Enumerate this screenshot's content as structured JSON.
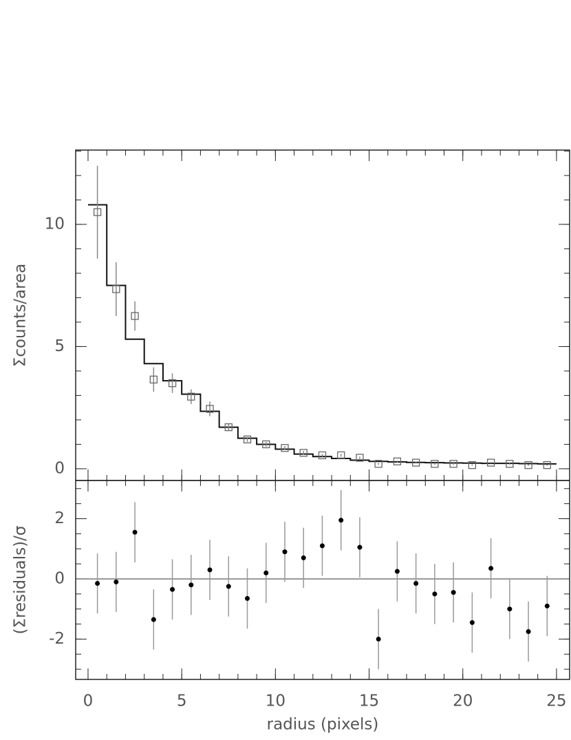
{
  "chart_data": [
    {
      "type": "scatter",
      "ylabel": "Σcounts/area",
      "marker": "square",
      "color": "#666666",
      "error_color": "#888888",
      "x": [
        0.5,
        1.5,
        2.5,
        3.5,
        4.5,
        5.5,
        6.5,
        7.5,
        8.5,
        9.5,
        10.5,
        11.5,
        12.5,
        13.5,
        14.5,
        15.5,
        16.5,
        17.5,
        18.5,
        19.5,
        20.5,
        21.5,
        22.5,
        23.5,
        24.5
      ],
      "values": [
        10.5,
        7.35,
        6.25,
        3.65,
        3.5,
        2.95,
        2.45,
        1.7,
        1.2,
        1.0,
        0.85,
        0.65,
        0.55,
        0.55,
        0.45,
        0.2,
        0.3,
        0.25,
        0.2,
        0.2,
        0.15,
        0.25,
        0.2,
        0.15,
        0.15
      ],
      "errors": [
        1.9,
        1.1,
        0.6,
        0.5,
        0.4,
        0.3,
        0.3,
        0.15,
        0.1,
        0.1,
        0.08,
        0.08,
        0.06,
        0.06,
        0.05,
        0.04,
        0.04,
        0.04,
        0.04,
        0.04,
        0.03,
        0.03,
        0.03,
        0.03,
        0.03
      ],
      "model_bins": [
        0,
        1,
        2,
        3,
        4,
        5,
        6,
        7,
        8,
        9,
        10,
        11,
        12,
        13,
        14,
        15,
        16,
        17,
        18,
        19,
        20,
        21,
        22,
        23,
        24,
        25
      ],
      "model": [
        10.8,
        7.5,
        5.3,
        4.3,
        3.6,
        3.05,
        2.35,
        1.7,
        1.25,
        1.0,
        0.8,
        0.6,
        0.5,
        0.42,
        0.35,
        0.3,
        0.28,
        0.26,
        0.25,
        0.24,
        0.23,
        0.22,
        0.22,
        0.21,
        0.2
      ],
      "model_color": "#111111",
      "xlim": [
        -0.66,
        25.7
      ],
      "xticks": [
        0,
        5,
        10,
        15,
        20,
        25
      ],
      "xminor": 1,
      "ylim": [
        -0.48,
        13.04
      ],
      "yticks": [
        0,
        5,
        10
      ],
      "yminor": 1
    },
    {
      "type": "scatter",
      "ylabel": "(Σresiduals)/σ",
      "xlabel": "radius (pixels)",
      "marker": "circle",
      "color": "#000000",
      "error_color": "#999999",
      "x": [
        0.5,
        1.5,
        2.5,
        3.5,
        4.5,
        5.5,
        6.5,
        7.5,
        8.5,
        9.5,
        10.5,
        11.5,
        12.5,
        13.5,
        14.5,
        15.5,
        16.5,
        17.5,
        18.5,
        19.5,
        20.5,
        21.5,
        22.5,
        23.5,
        24.5
      ],
      "values": [
        -0.15,
        -0.1,
        1.55,
        -1.35,
        -0.35,
        -0.2,
        0.3,
        -0.25,
        -0.65,
        0.2,
        0.9,
        0.7,
        1.1,
        1.95,
        1.05,
        -2.0,
        0.25,
        -0.15,
        -0.5,
        -0.45,
        -1.45,
        0.35,
        -1.0,
        -1.75,
        -0.9
      ],
      "errors": [
        1,
        1,
        1,
        1,
        1,
        1,
        1,
        1,
        1,
        1,
        1,
        1,
        1,
        1,
        1,
        1,
        1,
        1,
        1,
        1,
        1,
        1,
        1,
        1,
        1
      ],
      "hline": 0,
      "xlim": [
        -0.66,
        25.7
      ],
      "xticks": [
        0,
        5,
        10,
        15,
        20,
        25
      ],
      "xminor": 1,
      "ylim": [
        -3.34,
        3.27
      ],
      "yticks": [
        -2,
        0,
        2
      ],
      "yminor": 0.5
    }
  ]
}
